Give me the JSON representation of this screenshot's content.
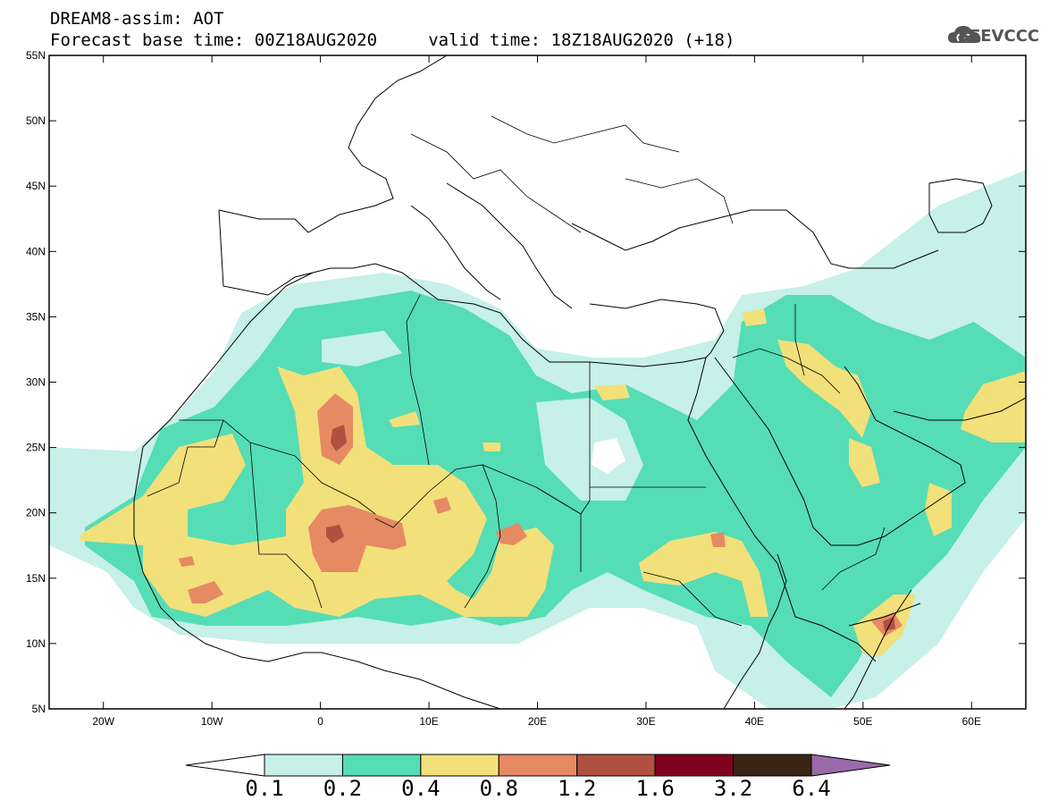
{
  "title": {
    "line1": "DREAM8-assim: AOT",
    "line2": "Forecast base time: 00Z18AUG2020     valid time: 18Z18AUG2020 (+18)"
  },
  "logo": {
    "text": "SEEVCCC",
    "icon": "cloud-icon"
  },
  "map": {
    "lon_range": [
      -25,
      65
    ],
    "lat_range": [
      5,
      55
    ],
    "lon_ticks": [
      {
        "value": -20,
        "label": "20W"
      },
      {
        "value": -10,
        "label": "10W"
      },
      {
        "value": 0,
        "label": "0"
      },
      {
        "value": 10,
        "label": "10E"
      },
      {
        "value": 20,
        "label": "20E"
      },
      {
        "value": 30,
        "label": "30E"
      },
      {
        "value": 40,
        "label": "40E"
      },
      {
        "value": 50,
        "label": "50E"
      },
      {
        "value": 60,
        "label": "60E"
      }
    ],
    "lat_ticks": [
      {
        "value": 55,
        "label": "55N"
      },
      {
        "value": 50,
        "label": "50N"
      },
      {
        "value": 45,
        "label": "45N"
      },
      {
        "value": 40,
        "label": "40N"
      },
      {
        "value": 35,
        "label": "35N"
      },
      {
        "value": 30,
        "label": "30N"
      },
      {
        "value": 25,
        "label": "25N"
      },
      {
        "value": 20,
        "label": "20N"
      },
      {
        "value": 15,
        "label": "15N"
      },
      {
        "value": 10,
        "label": "10N"
      },
      {
        "value": 5,
        "label": "5N"
      }
    ]
  },
  "colorbar": {
    "colors": [
      "#c6f0e8",
      "#55ddb6",
      "#f2e07a",
      "#e68a64",
      "#b05040",
      "#800020",
      "#3a2414",
      "#9a6aaa"
    ],
    "labels": [
      "0.1",
      "0.2",
      "0.4",
      "0.8",
      "1.2",
      "1.6",
      "3.2",
      "6.4"
    ]
  }
}
